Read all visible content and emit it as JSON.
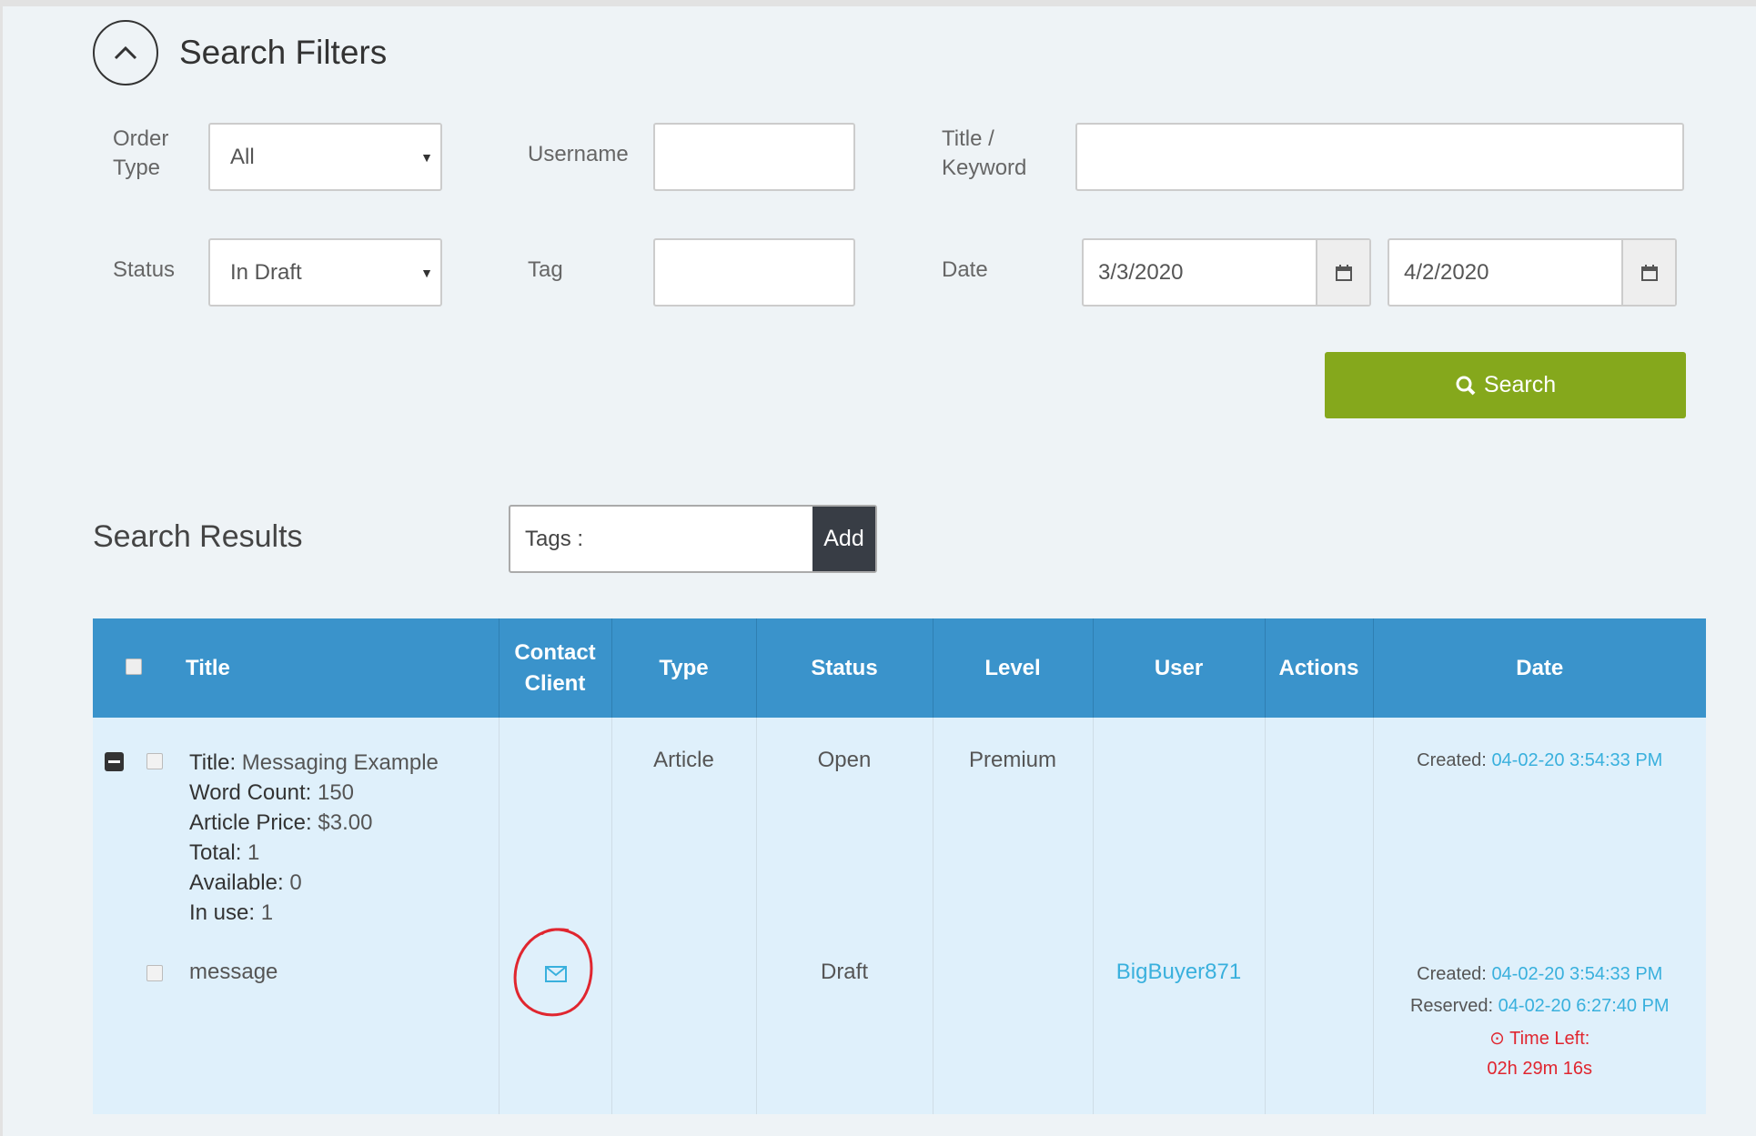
{
  "filters": {
    "title": "Search Filters",
    "order_type": {
      "label": "Order Type",
      "value": "All"
    },
    "username": {
      "label": "Username",
      "value": ""
    },
    "title_keyword": {
      "label": "Title / Keyword",
      "value": ""
    },
    "status": {
      "label": "Status",
      "value": "In Draft"
    },
    "tag": {
      "label": "Tag",
      "value": ""
    },
    "date": {
      "label": "Date",
      "from": "3/3/2020",
      "to": "4/2/2020"
    },
    "search_label": "Search",
    "search_color": "#85a81c"
  },
  "results": {
    "title": "Search Results",
    "tags_label": "Tags :",
    "add_label": "Add",
    "columns": [
      "Title",
      "Contact Client",
      "Type",
      "Status",
      "Level",
      "User",
      "Actions",
      "Date"
    ],
    "header_color": "#3a93cb",
    "order": {
      "title_label": "Title:",
      "title": "Messaging Example",
      "word_count_label": "Word Count:",
      "word_count": "150",
      "price_label": "Article Price:",
      "price": "$3.00",
      "total_label": "Total:",
      "total": "1",
      "available_label": "Available:",
      "available": "0",
      "in_use_label": "In use:",
      "in_use": "1",
      "type": "Article",
      "status": "Open",
      "level": "Premium",
      "created_label": "Created:",
      "created": "04-02-20 3:54:33 PM"
    },
    "item": {
      "title": "message",
      "status": "Draft",
      "user": "BigBuyer871",
      "created_label": "Created:",
      "created": "04-02-20 3:54:33 PM",
      "reserved_label": "Reserved:",
      "reserved": "04-02-20 6:27:40 PM",
      "time_left_label": "Time Left:",
      "time_left": "02h 29m 16s"
    }
  }
}
